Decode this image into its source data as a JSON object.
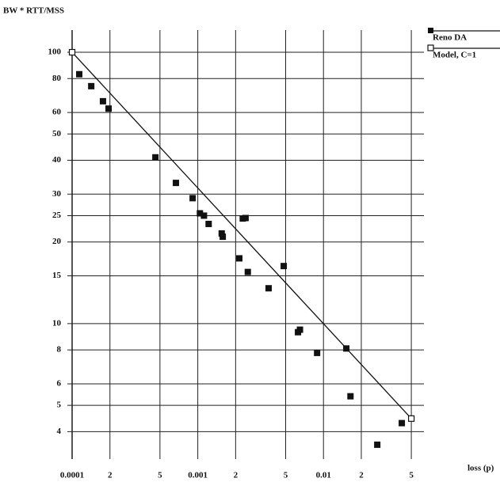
{
  "chart_data": {
    "type": "scatter",
    "y_label": "BW * RTT/MSS",
    "x_label": "loss (p)",
    "log_x": true,
    "log_y": true,
    "grid": true,
    "legend": "top-right",
    "xlim": [
      0.0001,
      0.063
    ],
    "ylim": [
      3.17,
      120.7
    ],
    "xticks": [
      0.0001,
      {
        "value": 0.0002,
        "label": "2"
      },
      {
        "value": 0.0005,
        "label": "5"
      },
      0.001,
      {
        "value": 0.002,
        "label": "2"
      },
      {
        "value": 0.005,
        "label": "5"
      },
      0.01,
      {
        "value": 0.02,
        "label": "2"
      },
      {
        "value": 0.05,
        "label": "5"
      }
    ],
    "yticks": [
      4,
      5,
      6,
      8,
      10,
      15,
      20,
      25,
      30,
      40,
      50,
      60,
      80,
      100
    ],
    "series": [
      {
        "name": "Reno DA",
        "color": "#111111",
        "marker": "filled-square",
        "x": [
          0.000114,
          0.000142,
          0.000176,
          0.000195,
          0.00046,
          0.00067,
          0.00091,
          0.00104,
          0.00112,
          0.00122,
          0.00155,
          0.00158,
          0.00214,
          0.00228,
          0.0024,
          0.0025,
          0.00366,
          0.00483,
          0.00627,
          0.0065,
          0.0089,
          0.0152,
          0.0164,
          0.0268,
          0.042
        ],
        "values": [
          83,
          75,
          66,
          62,
          41,
          33,
          29,
          25.5,
          25,
          23.3,
          21.5,
          20.9,
          17.4,
          24.4,
          24.5,
          15.5,
          13.5,
          16.3,
          9.3,
          9.5,
          7.8,
          8.1,
          5.4,
          3.58,
          4.3
        ]
      },
      {
        "name": "Model, C=1",
        "color": "#111111",
        "marker": "open-square",
        "line": true,
        "x": [
          0.0001,
          0.05
        ],
        "values": [
          100,
          4.47
        ]
      }
    ]
  }
}
